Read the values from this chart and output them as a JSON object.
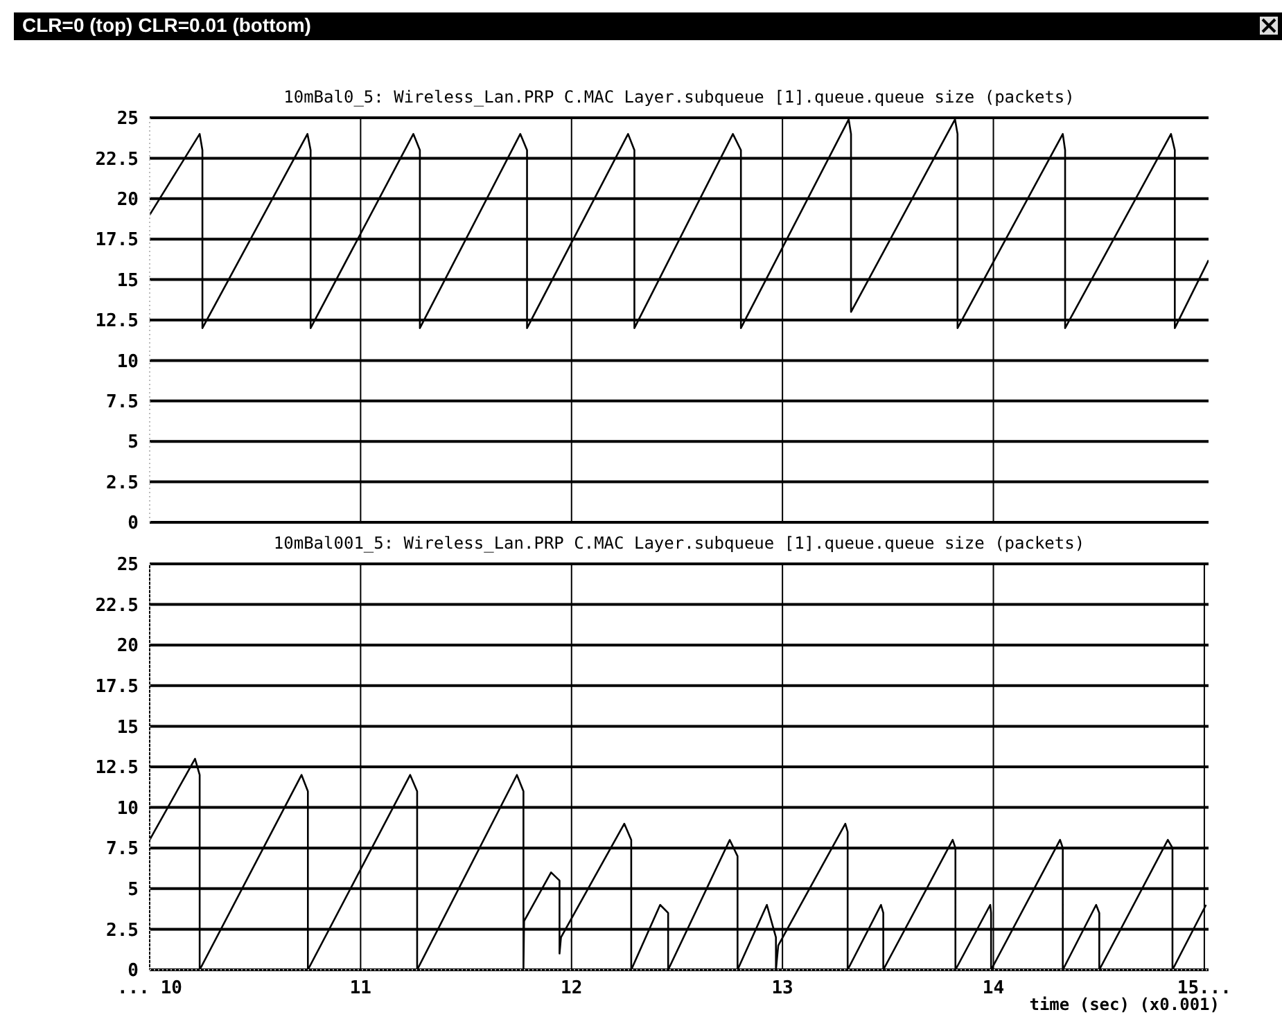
{
  "chart_data": [
    {
      "type": "line",
      "title": "CLR=0 (top) CLR=0.01 (bottom)",
      "subtitle": "10mBal0_5: Wireless_Lan.PRP C.MAC Layer.subqueue [1].queue.queue size (packets)",
      "xlim": [
        10,
        15.02
      ],
      "xticks": [
        11,
        12,
        13,
        14
      ],
      "ylim": [
        0,
        25
      ],
      "yticks": [
        0,
        2.5,
        5,
        7.5,
        10,
        12.5,
        15,
        17.5,
        20,
        22.5,
        25
      ],
      "tick_labels": "y",
      "grid": true,
      "marker": "none",
      "line_style": "solid",
      "series": [
        {
          "color": "#000000",
          "x": [
            10,
            10.237,
            10.25,
            10.25,
            10.748,
            10.763,
            10.763,
            11.25,
            11.281,
            11.281,
            11.757,
            11.789,
            11.789,
            12.268,
            12.298,
            12.298,
            12.765,
            12.803,
            12.803,
            13.314,
            13.325,
            13.325,
            13.818,
            13.83,
            13.83,
            14.329,
            14.34,
            14.34,
            14.842,
            14.86,
            14.86,
            15.02
          ],
          "values": [
            19,
            24,
            23,
            12,
            24,
            23,
            12,
            24,
            23,
            12,
            24,
            23,
            12,
            24,
            23,
            12,
            24,
            23,
            12,
            24.9,
            24,
            13,
            24.9,
            24,
            12,
            24,
            23,
            12,
            24,
            23,
            12,
            16.2
          ]
        }
      ]
    },
    {
      "type": "line",
      "title": "10mBal001_5: Wireless_Lan.PRP C.MAC Layer.subqueue [1].queue.queue size (packets)",
      "xlabel": "time (sec) (x0.001)",
      "xlim": [
        10,
        15.02
      ],
      "xticks": [
        {
          "value": 10,
          "label": "... 10"
        },
        11,
        12,
        13,
        14,
        {
          "value": 15,
          "label": "15..."
        }
      ],
      "ylim": [
        0,
        25
      ],
      "yticks": [
        0,
        2.5,
        5,
        7.5,
        10,
        12.5,
        15,
        17.5,
        20,
        22.5,
        25
      ],
      "grid": true,
      "marker": "none",
      "line_style": "solid",
      "series": [
        {
          "color": "#000000",
          "x": [
            10,
            10.215,
            10.237,
            10.237,
            10.72,
            10.75,
            10.75,
            11.235,
            11.268,
            11.268,
            11.741,
            11.772,
            11.772,
            11.775,
            11.903,
            11.943,
            11.943,
            11.95,
            12.25,
            12.283,
            12.283,
            12.42,
            12.458,
            12.458,
            12.75,
            12.787,
            12.787,
            12.926,
            12.969,
            12.969,
            12.98,
            13.298,
            13.309,
            13.309,
            13.467,
            13.478,
            13.478,
            13.807,
            13.82,
            13.82,
            13.985,
            13.989,
            13.989,
            14.316,
            14.329,
            14.329,
            14.487,
            14.502,
            14.502,
            14.827,
            14.849,
            14.849,
            15.008
          ],
          "values": [
            8,
            13,
            12,
            0,
            12,
            11,
            0,
            12,
            11,
            0,
            12,
            11,
            0,
            3,
            6,
            5.5,
            1,
            2,
            9,
            8,
            0,
            4,
            3.5,
            0,
            8,
            7,
            0,
            4,
            2,
            0,
            1.5,
            9,
            8.5,
            0,
            4,
            3.5,
            0,
            8,
            7.5,
            0,
            4,
            3.5,
            0,
            8,
            7.5,
            0,
            4,
            3.5,
            0,
            8,
            7.5,
            0,
            4
          ]
        }
      ]
    }
  ]
}
